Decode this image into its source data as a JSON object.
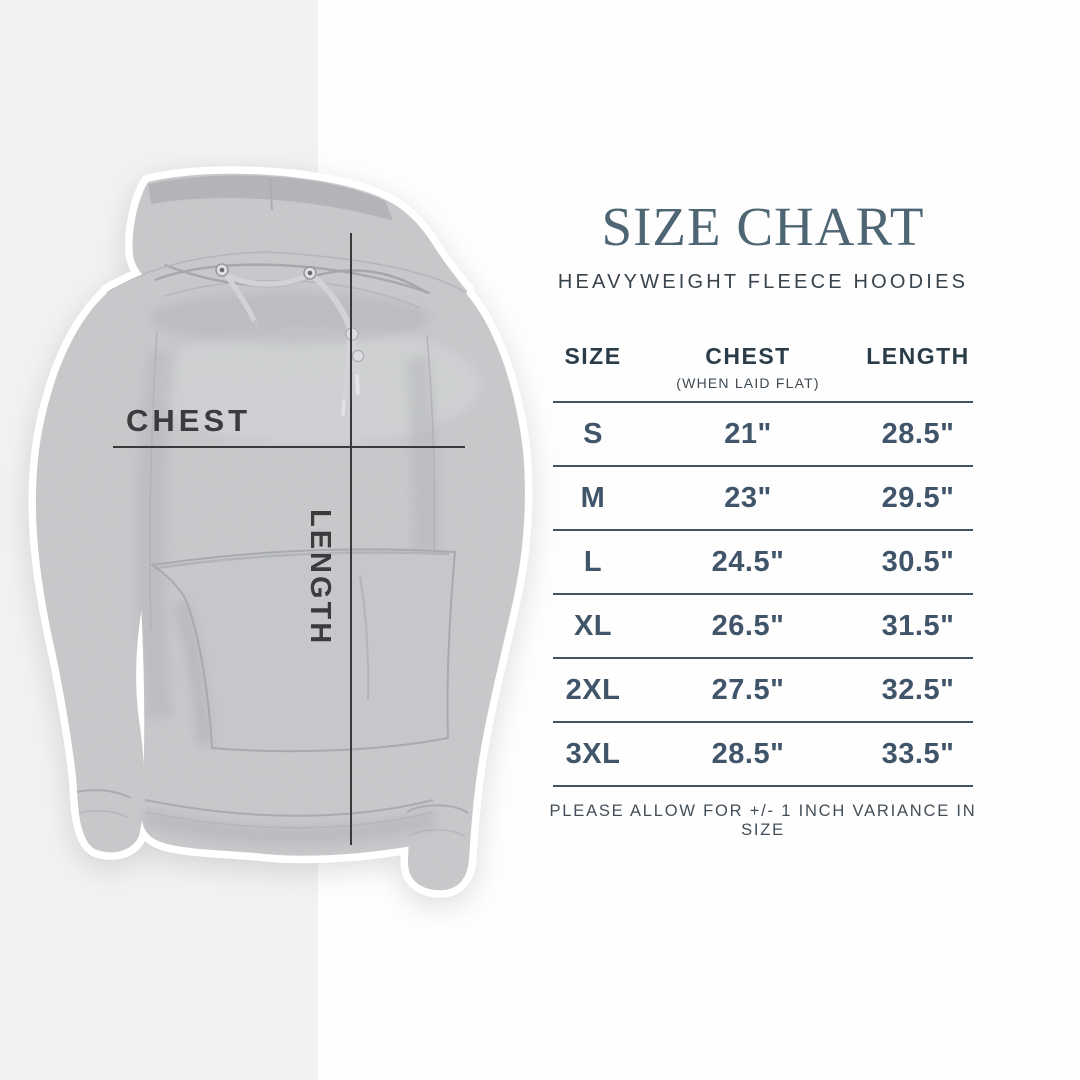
{
  "page": {
    "background": "#fefefe",
    "band_color": "#f1f2f1",
    "accent_title_color": "#4e6573",
    "table_text_color": "#41556a",
    "rule_color": "#415564",
    "measure_line_color": "#3a3a3d"
  },
  "hoodie": {
    "description": "gray heather fleece hoodie with white sticker outline",
    "fabric_color": "#c8c9cb",
    "chest_label": "CHEST",
    "length_label": "LENGTH"
  },
  "size_chart": {
    "title": "SIZE CHART",
    "subtitle": "HEAVYWEIGHT FLEECE HOODIES",
    "columns": [
      {
        "label": "SIZE",
        "sublabel": ""
      },
      {
        "label": "CHEST",
        "sublabel": "(WHEN LAID FLAT)"
      },
      {
        "label": "LENGTH",
        "sublabel": ""
      }
    ],
    "rows": [
      {
        "size": "S",
        "chest": "21\"",
        "length": "28.5\""
      },
      {
        "size": "M",
        "chest": "23\"",
        "length": "29.5\""
      },
      {
        "size": "L",
        "chest": "24.5\"",
        "length": "30.5\""
      },
      {
        "size": "XL",
        "chest": "26.5\"",
        "length": "31.5\""
      },
      {
        "size": "2XL",
        "chest": "27.5\"",
        "length": "32.5\""
      },
      {
        "size": "3XL",
        "chest": "28.5\"",
        "length": "33.5\""
      }
    ],
    "footnote": "PLEASE ALLOW FOR +/- 1 INCH VARIANCE IN SIZE"
  },
  "chart_data": {
    "type": "table",
    "title": "SIZE CHART",
    "subtitle": "HEAVYWEIGHT FLEECE HOODIES",
    "columns": [
      "SIZE",
      "CHEST (WHEN LAID FLAT)",
      "LENGTH"
    ],
    "units": "inches",
    "rows": [
      [
        "S",
        21,
        28.5
      ],
      [
        "M",
        23,
        29.5
      ],
      [
        "L",
        24.5,
        30.5
      ],
      [
        "XL",
        26.5,
        31.5
      ],
      [
        "2XL",
        27.5,
        32.5
      ],
      [
        "3XL",
        28.5,
        33.5
      ]
    ],
    "footnote": "PLEASE ALLOW FOR +/- 1 INCH VARIANCE IN SIZE"
  }
}
